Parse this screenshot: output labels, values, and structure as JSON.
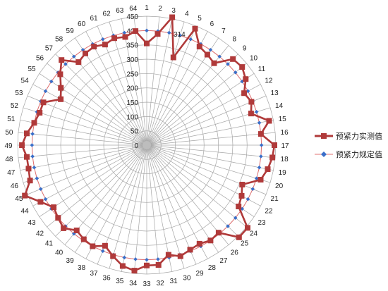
{
  "chart_data": {
    "type": "radar",
    "categories": [
      "1",
      "2",
      "3",
      "4",
      "5",
      "6",
      "7",
      "8",
      "9",
      "10",
      "11",
      "12",
      "13",
      "14",
      "15",
      "16",
      "17",
      "18",
      "19",
      "20",
      "21",
      "22",
      "23",
      "24",
      "25",
      "26",
      "27",
      "28",
      "29",
      "30",
      "31",
      "32",
      "33",
      "34",
      "35",
      "36",
      "37",
      "38",
      "39",
      "40",
      "41",
      "42",
      "43",
      "44",
      "45",
      "46",
      "47",
      "48",
      "49",
      "50",
      "51",
      "52",
      "53",
      "54",
      "55",
      "56",
      "57",
      "58",
      "59",
      "60",
      "61",
      "62",
      "63",
      "64"
    ],
    "radial_ticks": [
      0,
      50,
      100,
      150,
      200,
      250,
      300,
      350,
      400,
      450
    ],
    "range": [
      0,
      450
    ],
    "grid": true,
    "legend_position": "right",
    "series": [
      {
        "name": "预紧力实测值",
        "color": "#b03a3a",
        "marker": "square",
        "values": [
          355,
          390,
          455,
          320,
          440,
          390,
          380,
          370,
          425,
          430,
          415,
          385,
          395,
          380,
          435,
          400,
          445,
          440,
          430,
          415,
          360,
          375,
          385,
          455,
          455,
          395,
          400,
          390,
          395,
          405,
          390,
          420,
          420,
          440,
          430,
          405,
          380,
          400,
          395,
          385,
          410,
          400,
          390,
          420,
          460,
          425,
          420,
          420,
          435,
          420,
          400,
          390,
          390,
          340,
          360,
          390,
          420,
          375,
          385,
          390,
          380,
          390,
          385,
          400
        ]
      },
      {
        "name": "预紧力规定值",
        "color": "#3a6fc9",
        "marker": "diamond",
        "values": [
          400,
          400,
          400,
          400,
          400,
          400,
          400,
          400,
          400,
          400,
          400,
          400,
          400,
          400,
          400,
          400,
          400,
          400,
          400,
          400,
          400,
          400,
          400,
          400,
          400,
          400,
          400,
          400,
          400,
          400,
          400,
          400,
          400,
          400,
          400,
          400,
          400,
          400,
          400,
          400,
          400,
          400,
          400,
          400,
          400,
          400,
          400,
          400,
          400,
          400,
          400,
          400,
          400,
          400,
          400,
          400,
          400,
          400,
          400,
          400,
          400,
          400,
          400,
          400
        ]
      }
    ]
  },
  "extra_labels": {
    "point_label": "314"
  },
  "legend": {
    "items": [
      {
        "label": "预紧力实测值"
      },
      {
        "label": "预紧力规定值"
      }
    ]
  }
}
